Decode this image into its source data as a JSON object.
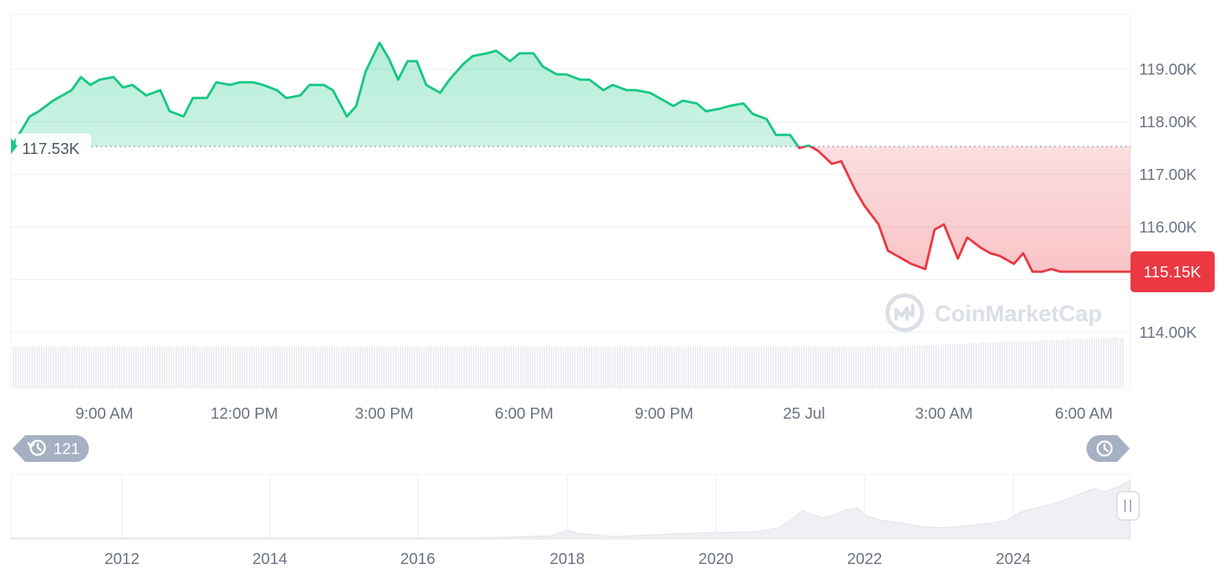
{
  "chart_data": {
    "type": "area",
    "ylim": [
      113.0,
      120.0
    ],
    "y_ticks": [
      {
        "value": 114,
        "label": "114.00K"
      },
      {
        "value": 115,
        "label": ""
      },
      {
        "value": 116,
        "label": "116.00K"
      },
      {
        "value": 117,
        "label": "117.00K"
      },
      {
        "value": 118,
        "label": "118.00K"
      },
      {
        "value": 119,
        "label": "119.00K"
      }
    ],
    "x_ticks": [
      "9:00 AM",
      "12:00 PM",
      "3:00 PM",
      "6:00 PM",
      "9:00 PM",
      "25 Jul",
      "3:00 AM",
      "6:00 AM"
    ],
    "x_tick_hours": [
      9,
      12,
      15,
      18,
      21,
      24,
      27,
      30
    ],
    "x_range_hours": [
      7.0,
      31.0
    ],
    "series": [
      {
        "x_hours": [
          7.0,
          7.4,
          7.6,
          7.9,
          8.1,
          8.3,
          8.5,
          8.7,
          8.9,
          9.2,
          9.4,
          9.6,
          9.9,
          10.2,
          10.4,
          10.7,
          10.9,
          11.2,
          11.4,
          11.7,
          11.9,
          12.2,
          12.4,
          12.7,
          12.9,
          13.2,
          13.4,
          13.7,
          13.9,
          14.2,
          14.4,
          14.6,
          14.9,
          15.1,
          15.3,
          15.5,
          15.7,
          15.9,
          16.2,
          16.4,
          16.7,
          16.9,
          17.2,
          17.4,
          17.7,
          17.9,
          18.2,
          18.4,
          18.7,
          18.9,
          19.2,
          19.4,
          19.7,
          19.9,
          20.2,
          20.4,
          20.7,
          20.9,
          21.2,
          21.4,
          21.7,
          21.9,
          22.2,
          22.4,
          22.7,
          22.9,
          23.2,
          23.4,
          23.7,
          23.9,
          24.1,
          24.3,
          24.6,
          24.8,
          25.1,
          25.3,
          25.6,
          25.8,
          26.1,
          26.3,
          26.6,
          26.8,
          27.0,
          27.3,
          27.5,
          27.8,
          28.0,
          28.2,
          28.4,
          28.5,
          28.7,
          28.9,
          29.1,
          29.3,
          29.5,
          29.7,
          30.0,
          30.2,
          30.4,
          30.6,
          30.8,
          31.0
        ],
        "y": [
          117.5,
          118.1,
          118.2,
          118.4,
          118.5,
          118.6,
          118.85,
          118.7,
          118.8,
          118.85,
          118.65,
          118.7,
          118.5,
          118.6,
          118.2,
          118.1,
          118.45,
          118.45,
          118.75,
          118.7,
          118.75,
          118.75,
          118.7,
          118.6,
          118.45,
          118.5,
          118.7,
          118.7,
          118.6,
          118.1,
          118.3,
          118.95,
          119.5,
          119.2,
          118.8,
          119.15,
          119.15,
          118.7,
          118.55,
          118.8,
          119.1,
          119.25,
          119.3,
          119.35,
          119.15,
          119.3,
          119.3,
          119.05,
          118.9,
          118.9,
          118.8,
          118.8,
          118.6,
          118.7,
          118.6,
          118.6,
          118.55,
          118.45,
          118.3,
          118.4,
          118.35,
          118.2,
          118.25,
          118.3,
          118.35,
          118.15,
          118.05,
          117.75,
          117.75,
          117.5,
          117.55,
          117.45,
          117.2,
          117.25,
          116.7,
          116.4,
          116.05,
          115.55,
          115.4,
          115.3,
          115.2,
          115.95,
          116.05,
          115.4,
          115.8,
          115.6,
          115.5,
          115.45,
          115.35,
          115.3,
          115.5,
          115.15,
          115.15,
          115.2,
          115.15,
          115.15,
          115.15,
          115.15,
          115.15,
          115.15,
          115.15,
          115.15
        ],
        "color_up": "#16c784",
        "color_down": "#ea3943"
      }
    ],
    "reference_value": 117.53,
    "reference_label": "117.53K",
    "current_value": 115.15,
    "current_label": "115.15K",
    "navigator": {
      "x_ticks": [
        "2012",
        "2014",
        "2016",
        "2018",
        "2020",
        "2022",
        "2024"
      ]
    }
  },
  "history_badge": {
    "count": "121",
    "icon": "history-icon"
  },
  "reset_badge": {
    "icon": "clock-reset-icon"
  },
  "watermark": {
    "text": "CoinMarketCap",
    "icon": "coinmarketcap-logo-icon"
  },
  "colors": {
    "up": "#16c784",
    "down": "#ea3943",
    "grid": "#eff2f5",
    "axis_text": "#6b7280",
    "badge_gray": "#a6b0c3"
  }
}
